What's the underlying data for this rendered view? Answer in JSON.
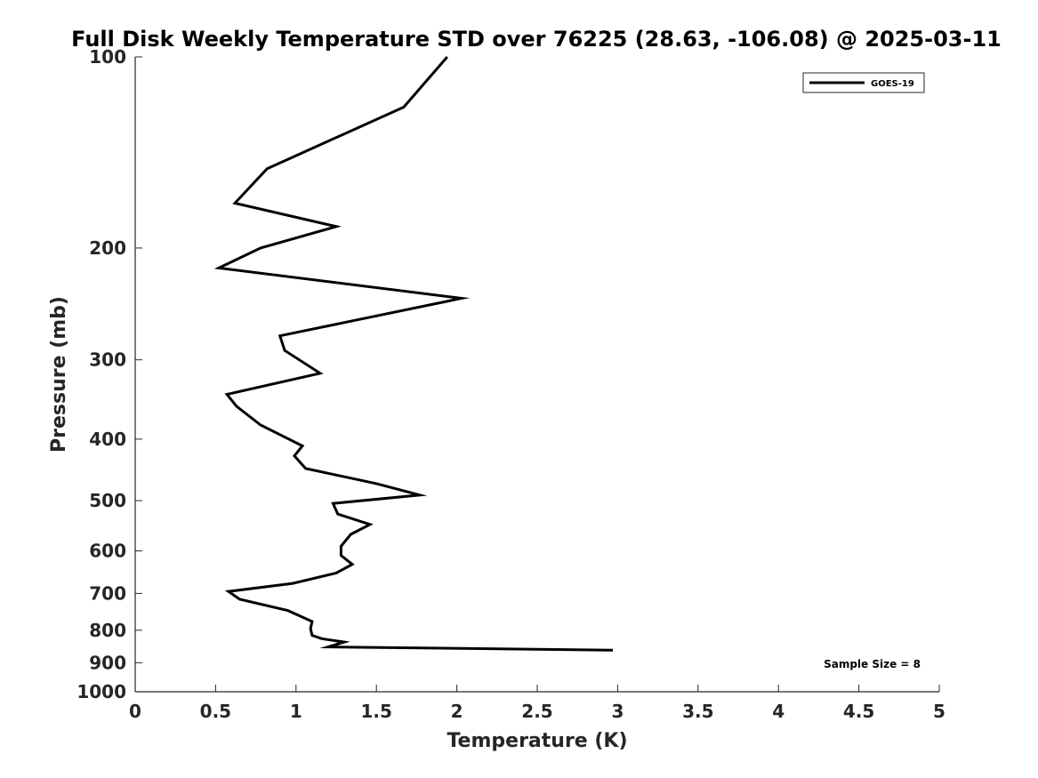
{
  "chart_data": {
    "type": "line",
    "title": "Full Disk Weekly Temperature STD over 76225 (28.63, -106.08) @ 2025-03-11",
    "xlabel": "Temperature (K)",
    "ylabel": "Pressure (mb)",
    "xlim": [
      0,
      5
    ],
    "ylim": [
      100,
      1000
    ],
    "y_scale": "log",
    "y_reversed": true,
    "x_ticks": [
      0,
      0.5,
      1,
      1.5,
      2,
      2.5,
      3,
      3.5,
      4,
      4.5,
      5
    ],
    "x_tick_labels": [
      "0",
      "0.5",
      "1",
      "1.5",
      "2",
      "2.5",
      "3",
      "3.5",
      "4",
      "4.5",
      "5"
    ],
    "y_ticks": [
      100,
      200,
      300,
      400,
      500,
      600,
      700,
      800,
      900,
      1000
    ],
    "y_tick_labels": [
      "100",
      "200",
      "300",
      "400",
      "500",
      "600",
      "700",
      "800",
      "900",
      "1000"
    ],
    "legend_position": "top-right",
    "annotation": "Sample Size = 8",
    "series": [
      {
        "name": "GOES-19",
        "color": "#000000",
        "x": [
          1.94,
          1.67,
          0.82,
          0.62,
          1.25,
          0.78,
          0.52,
          2.03,
          0.9,
          0.93,
          1.15,
          0.57,
          0.63,
          0.78,
          1.04,
          0.99,
          1.06,
          1.5,
          1.77,
          1.23,
          1.26,
          1.46,
          1.34,
          1.28,
          1.28,
          1.35,
          1.25,
          0.98,
          0.58,
          0.65,
          0.95,
          1.1,
          1.09,
          1.1,
          1.16,
          1.3,
          1.2,
          2.97
        ],
        "y": [
          100,
          120,
          150,
          170,
          185,
          200,
          215,
          240,
          275,
          290,
          315,
          340,
          355,
          380,
          410,
          425,
          445,
          470,
          490,
          505,
          525,
          545,
          565,
          590,
          610,
          630,
          650,
          675,
          695,
          715,
          745,
          775,
          795,
          815,
          825,
          835,
          850,
          860
        ]
      }
    ]
  }
}
